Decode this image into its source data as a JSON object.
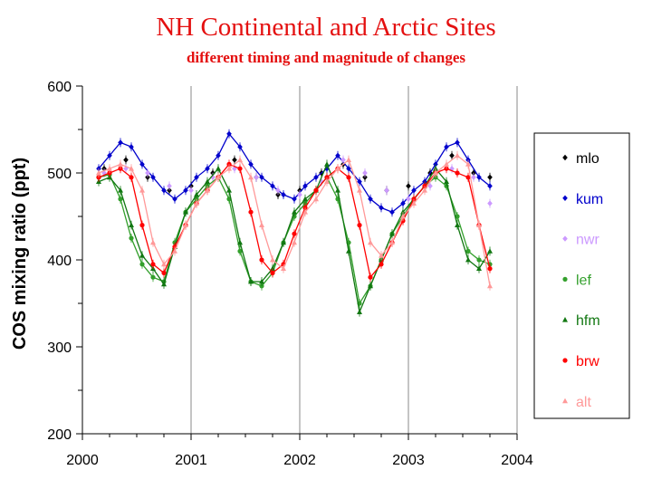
{
  "chart_data": {
    "type": "scatter",
    "title": "NH Continental and Arctic Sites",
    "subtitle": "different timing and magnitude of changes",
    "xlabel": "",
    "ylabel": "COS mixing ratio  (ppt)",
    "xlim": [
      2000,
      2004
    ],
    "ylim": [
      200,
      600
    ],
    "x_ticks": [
      2000,
      2001,
      2002,
      2003,
      2004
    ],
    "y_ticks": [
      200,
      300,
      400,
      500,
      600
    ],
    "grid": "vertical lines at years",
    "legend_position": "right",
    "series": [
      {
        "name": "mlo",
        "color": "#000000",
        "marker": "diamond",
        "line": false,
        "x": [
          2000.2,
          2000.4,
          2000.6,
          2000.8,
          2001.0,
          2001.2,
          2001.4,
          2001.6,
          2001.8,
          2002.0,
          2002.2,
          2002.4,
          2002.6,
          2002.8,
          2003.0,
          2003.2,
          2003.4,
          2003.6,
          2003.75
        ],
        "y": [
          505,
          515,
          495,
          480,
          485,
          500,
          515,
          495,
          475,
          480,
          500,
          510,
          495,
          480,
          485,
          500,
          520,
          500,
          495
        ]
      },
      {
        "name": "kum",
        "color": "#0000cc",
        "marker": "diamond",
        "line": true,
        "x": [
          2000.15,
          2000.25,
          2000.35,
          2000.45,
          2000.55,
          2000.65,
          2000.75,
          2000.85,
          2000.95,
          2001.05,
          2001.15,
          2001.25,
          2001.35,
          2001.45,
          2001.55,
          2001.65,
          2001.75,
          2001.85,
          2001.95,
          2002.05,
          2002.15,
          2002.25,
          2002.35,
          2002.45,
          2002.55,
          2002.65,
          2002.75,
          2002.85,
          2002.95,
          2003.05,
          2003.15,
          2003.25,
          2003.35,
          2003.45,
          2003.55,
          2003.65,
          2003.75
        ],
        "y": [
          505,
          520,
          535,
          530,
          510,
          495,
          480,
          470,
          480,
          495,
          505,
          520,
          545,
          530,
          510,
          495,
          485,
          475,
          470,
          485,
          495,
          505,
          520,
          505,
          490,
          470,
          460,
          455,
          465,
          480,
          490,
          510,
          530,
          535,
          515,
          495,
          485
        ]
      },
      {
        "name": "nwr",
        "color": "#cc99ff",
        "marker": "diamond",
        "line": false,
        "x": [
          2000.2,
          2000.4,
          2000.6,
          2000.8,
          2001.0,
          2001.2,
          2001.4,
          2001.6,
          2001.8,
          2002.0,
          2002.2,
          2002.4,
          2002.6,
          2002.8,
          2003.0,
          2003.2,
          2003.4,
          2003.6,
          2003.75
        ],
        "y": [
          500,
          505,
          500,
          485,
          480,
          495,
          505,
          495,
          480,
          475,
          490,
          515,
          500,
          480,
          470,
          485,
          505,
          495,
          465
        ]
      },
      {
        "name": "lef",
        "color": "#33a02c",
        "marker": "circle",
        "line": true,
        "x": [
          2000.15,
          2000.25,
          2000.35,
          2000.45,
          2000.55,
          2000.65,
          2000.75,
          2000.85,
          2000.95,
          2001.05,
          2001.15,
          2001.25,
          2001.35,
          2001.45,
          2001.55,
          2001.65,
          2001.75,
          2001.85,
          2001.95,
          2002.05,
          2002.15,
          2002.25,
          2002.35,
          2002.45,
          2002.55,
          2002.65,
          2002.75,
          2002.85,
          2002.95,
          2003.05,
          2003.15,
          2003.25,
          2003.35,
          2003.45,
          2003.55,
          2003.65,
          2003.75
        ],
        "y": [
          495,
          498,
          470,
          425,
          395,
          380,
          375,
          420,
          455,
          470,
          485,
          495,
          470,
          410,
          375,
          370,
          385,
          420,
          450,
          465,
          480,
          495,
          470,
          420,
          350,
          370,
          400,
          430,
          450,
          470,
          485,
          495,
          485,
          450,
          410,
          400,
          395
        ]
      },
      {
        "name": "hfm",
        "color": "#117711",
        "marker": "triangle",
        "line": true,
        "x": [
          2000.15,
          2000.25,
          2000.35,
          2000.45,
          2000.55,
          2000.65,
          2000.75,
          2000.85,
          2000.95,
          2001.05,
          2001.15,
          2001.25,
          2001.35,
          2001.45,
          2001.55,
          2001.65,
          2001.75,
          2001.85,
          2001.95,
          2002.05,
          2002.15,
          2002.25,
          2002.35,
          2002.45,
          2002.55,
          2002.65,
          2002.75,
          2002.85,
          2002.95,
          2003.05,
          2003.15,
          2003.25,
          2003.35,
          2003.45,
          2003.55,
          2003.65,
          2003.75
        ],
        "y": [
          490,
          495,
          480,
          440,
          405,
          390,
          372,
          415,
          455,
          475,
          490,
          505,
          480,
          420,
          375,
          375,
          390,
          420,
          455,
          470,
          480,
          510,
          480,
          410,
          340,
          370,
          400,
          430,
          455,
          470,
          485,
          505,
          490,
          440,
          400,
          390,
          410
        ]
      },
      {
        "name": "brw",
        "color": "#ff0000",
        "marker": "circle",
        "line": true,
        "x": [
          2000.15,
          2000.25,
          2000.35,
          2000.45,
          2000.55,
          2000.65,
          2000.75,
          2000.85,
          2000.95,
          2001.05,
          2001.15,
          2001.25,
          2001.35,
          2001.45,
          2001.55,
          2001.65,
          2001.75,
          2001.85,
          2001.95,
          2002.05,
          2002.15,
          2002.25,
          2002.35,
          2002.45,
          2002.55,
          2002.65,
          2002.75,
          2002.85,
          2002.95,
          2003.05,
          2003.15,
          2003.25,
          2003.35,
          2003.45,
          2003.55,
          2003.65,
          2003.75
        ],
        "y": [
          495,
          500,
          505,
          495,
          440,
          395,
          385,
          415,
          440,
          465,
          480,
          495,
          510,
          505,
          455,
          400,
          385,
          395,
          430,
          460,
          480,
          495,
          505,
          495,
          440,
          380,
          395,
          420,
          445,
          470,
          485,
          500,
          505,
          500,
          495,
          440,
          390
        ]
      },
      {
        "name": "alt",
        "color": "#ff9999",
        "marker": "triangle",
        "line": true,
        "x": [
          2000.15,
          2000.25,
          2000.35,
          2000.45,
          2000.55,
          2000.65,
          2000.75,
          2000.85,
          2000.95,
          2001.05,
          2001.15,
          2001.25,
          2001.35,
          2001.45,
          2001.55,
          2001.65,
          2001.75,
          2001.85,
          2001.95,
          2002.05,
          2002.15,
          2002.25,
          2002.35,
          2002.45,
          2002.55,
          2002.65,
          2002.75,
          2002.85,
          2002.95,
          2003.05,
          2003.15,
          2003.25,
          2003.35,
          2003.45,
          2003.55,
          2003.65,
          2003.75
        ],
        "y": [
          500,
          505,
          510,
          505,
          480,
          420,
          395,
          410,
          440,
          465,
          480,
          495,
          505,
          515,
          495,
          440,
          400,
          390,
          420,
          455,
          470,
          490,
          505,
          515,
          480,
          420,
          405,
          420,
          450,
          465,
          480,
          500,
          510,
          520,
          510,
          440,
          370
        ]
      }
    ]
  }
}
